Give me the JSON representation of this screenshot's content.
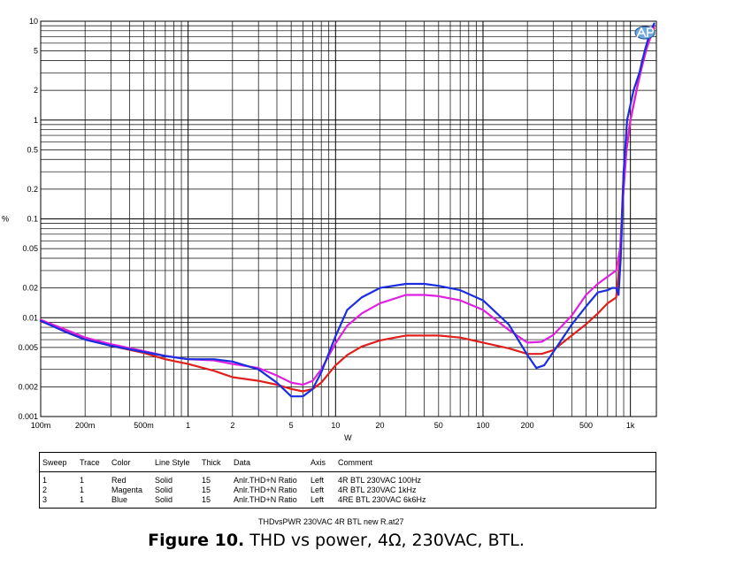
{
  "chart_data": {
    "type": "line",
    "xscale": "log",
    "yscale": "log",
    "xlim": [
      0.1,
      1500
    ],
    "ylim": [
      0.001,
      10
    ],
    "xlabel": "W",
    "ylabel": "%",
    "grid": true,
    "x_ticks": [
      {
        "v": 0.1,
        "label": "100m"
      },
      {
        "v": 0.2,
        "label": "200m"
      },
      {
        "v": 0.5,
        "label": "500m"
      },
      {
        "v": 1,
        "label": "1"
      },
      {
        "v": 2,
        "label": "2"
      },
      {
        "v": 5,
        "label": "5"
      },
      {
        "v": 10,
        "label": "10"
      },
      {
        "v": 20,
        "label": "20"
      },
      {
        "v": 50,
        "label": "50"
      },
      {
        "v": 100,
        "label": "100"
      },
      {
        "v": 200,
        "label": "200"
      },
      {
        "v": 500,
        "label": "500"
      },
      {
        "v": 1000,
        "label": "1k"
      }
    ],
    "y_ticks": [
      {
        "v": 10,
        "label": "10"
      },
      {
        "v": 5,
        "label": "5"
      },
      {
        "v": 2,
        "label": "2"
      },
      {
        "v": 1,
        "label": "1"
      },
      {
        "v": 0.5,
        "label": "0.5"
      },
      {
        "v": 0.2,
        "label": "0.2"
      },
      {
        "v": 0.1,
        "label": "0.1"
      },
      {
        "v": 0.05,
        "label": "0.05"
      },
      {
        "v": 0.02,
        "label": "0.02"
      },
      {
        "v": 0.01,
        "label": "0.01"
      },
      {
        "v": 0.005,
        "label": "0.005"
      },
      {
        "v": 0.002,
        "label": "0.002"
      },
      {
        "v": 0.001,
        "label": "0.001"
      }
    ],
    "series": [
      {
        "color": "#e0201c",
        "points": [
          [
            0.1,
            0.0092
          ],
          [
            0.15,
            0.0074
          ],
          [
            0.2,
            0.0062
          ],
          [
            0.3,
            0.0052
          ],
          [
            0.5,
            0.0044
          ],
          [
            0.7,
            0.0038
          ],
          [
            1,
            0.0034
          ],
          [
            1.5,
            0.0029
          ],
          [
            2,
            0.0025
          ],
          [
            3,
            0.0023
          ],
          [
            4,
            0.0021
          ],
          [
            5,
            0.0019
          ],
          [
            6,
            0.0018
          ],
          [
            7,
            0.0019
          ],
          [
            8,
            0.0022
          ],
          [
            10,
            0.0033
          ],
          [
            12,
            0.0042
          ],
          [
            15,
            0.0051
          ],
          [
            20,
            0.0059
          ],
          [
            30,
            0.0066
          ],
          [
            50,
            0.0066
          ],
          [
            70,
            0.0063
          ],
          [
            100,
            0.0056
          ],
          [
            150,
            0.0049
          ],
          [
            200,
            0.0043
          ],
          [
            250,
            0.0043
          ],
          [
            300,
            0.0047
          ],
          [
            400,
            0.0066
          ],
          [
            500,
            0.0086
          ],
          [
            600,
            0.011
          ],
          [
            700,
            0.014
          ],
          [
            800,
            0.016
          ],
          [
            850,
            0.04
          ],
          [
            900,
            0.3
          ],
          [
            1000,
            1.0
          ],
          [
            1100,
            2.0
          ],
          [
            1200,
            4.0
          ],
          [
            1350,
            6.5
          ],
          [
            1450,
            8.5
          ]
        ]
      },
      {
        "color": "#e020e0",
        "points": [
          [
            0.1,
            0.0095
          ],
          [
            0.15,
            0.0075
          ],
          [
            0.2,
            0.0063
          ],
          [
            0.3,
            0.0054
          ],
          [
            0.5,
            0.0046
          ],
          [
            0.7,
            0.0041
          ],
          [
            1,
            0.0038
          ],
          [
            1.5,
            0.0037
          ],
          [
            2,
            0.0034
          ],
          [
            3,
            0.0031
          ],
          [
            4,
            0.0026
          ],
          [
            5,
            0.0022
          ],
          [
            6,
            0.0021
          ],
          [
            7,
            0.0023
          ],
          [
            8,
            0.003
          ],
          [
            10,
            0.0055
          ],
          [
            12,
            0.0083
          ],
          [
            15,
            0.011
          ],
          [
            20,
            0.014
          ],
          [
            30,
            0.017
          ],
          [
            40,
            0.017
          ],
          [
            50,
            0.0165
          ],
          [
            70,
            0.015
          ],
          [
            100,
            0.012
          ],
          [
            150,
            0.0075
          ],
          [
            200,
            0.0056
          ],
          [
            250,
            0.0057
          ],
          [
            300,
            0.0067
          ],
          [
            400,
            0.0105
          ],
          [
            500,
            0.017
          ],
          [
            600,
            0.022
          ],
          [
            700,
            0.026
          ],
          [
            800,
            0.03
          ],
          [
            850,
            0.05
          ],
          [
            900,
            0.2
          ],
          [
            950,
            0.6
          ],
          [
            1000,
            1.0
          ],
          [
            1100,
            2.0
          ],
          [
            1200,
            3.5
          ],
          [
            1300,
            5.5
          ],
          [
            1450,
            9.0
          ]
        ]
      },
      {
        "color": "#1a2ee0",
        "points": [
          [
            0.1,
            0.0093
          ],
          [
            0.15,
            0.0071
          ],
          [
            0.2,
            0.006
          ],
          [
            0.3,
            0.0052
          ],
          [
            0.5,
            0.0045
          ],
          [
            0.7,
            0.0041
          ],
          [
            1,
            0.0038
          ],
          [
            1.5,
            0.0038
          ],
          [
            2,
            0.0036
          ],
          [
            3,
            0.003
          ],
          [
            4,
            0.0022
          ],
          [
            5,
            0.0016
          ],
          [
            6,
            0.0016
          ],
          [
            7,
            0.0019
          ],
          [
            8,
            0.0028
          ],
          [
            10,
            0.0065
          ],
          [
            12,
            0.012
          ],
          [
            15,
            0.016
          ],
          [
            20,
            0.02
          ],
          [
            30,
            0.022
          ],
          [
            40,
            0.022
          ],
          [
            50,
            0.021
          ],
          [
            70,
            0.019
          ],
          [
            100,
            0.015
          ],
          [
            150,
            0.0085
          ],
          [
            200,
            0.0042
          ],
          [
            230,
            0.0031
          ],
          [
            260,
            0.0033
          ],
          [
            300,
            0.0045
          ],
          [
            400,
            0.0085
          ],
          [
            500,
            0.013
          ],
          [
            600,
            0.018
          ],
          [
            700,
            0.019
          ],
          [
            750,
            0.02
          ],
          [
            800,
            0.02
          ],
          [
            830,
            0.017
          ],
          [
            860,
            0.04
          ],
          [
            900,
            0.3
          ],
          [
            950,
            1.0
          ],
          [
            1050,
            2.0
          ],
          [
            1150,
            3.0
          ],
          [
            1250,
            5.0
          ],
          [
            1350,
            7.5
          ],
          [
            1450,
            9.5
          ]
        ]
      }
    ],
    "logo": "ap-logo"
  },
  "table": {
    "headers": {
      "sweep": "Sweep",
      "trace": "Trace",
      "color": "Color",
      "line_style": "Line Style",
      "thick": "Thick",
      "data": "Data",
      "axis": "Axis",
      "comment": "Comment"
    },
    "rows": [
      {
        "sweep": "1",
        "trace": "1",
        "color": "Red",
        "line_style": "Solid",
        "thick": "15",
        "data": "Anlr.THD+N Ratio",
        "axis": "Left",
        "comment": "4R BTL 230VAC 100Hz"
      },
      {
        "sweep": "2",
        "trace": "1",
        "color": "Magenta",
        "line_style": "Solid",
        "thick": "15",
        "data": "Anlr.THD+N Ratio",
        "axis": "Left",
        "comment": "4R BTL 230VAC 1kHz"
      },
      {
        "sweep": "3",
        "trace": "1",
        "color": "Blue",
        "line_style": "Solid",
        "thick": "15",
        "data": "Anlr.THD+N Ratio",
        "axis": "Left",
        "comment": "4RE BTL 230VAC 6k6Hz"
      }
    ]
  },
  "file_name": "THDvsPWR 230VAC 4R BTL new R.at27",
  "caption": {
    "bold": "Figure 10.",
    "text": " THD vs power, 4Ω, 230VAC, BTL."
  }
}
